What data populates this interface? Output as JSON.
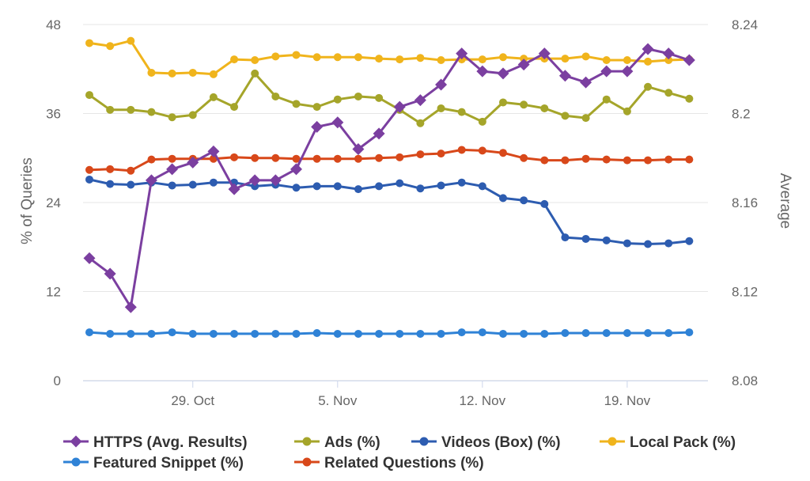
{
  "chart_data": {
    "type": "line",
    "title": "",
    "x_tick_labels": [
      "29. Oct",
      "5. Nov",
      "12. Nov",
      "19. Nov"
    ],
    "y_left": {
      "label": "% of Queries",
      "range": [
        0,
        48
      ],
      "ticks": [
        "0",
        "12",
        "24",
        "36",
        "48"
      ]
    },
    "y_right": {
      "label": "Average",
      "range": [
        8.08,
        8.24
      ],
      "ticks": [
        "8.08",
        "8.12",
        "8.16",
        "8.2",
        "8.24"
      ]
    },
    "grid": "horizontal",
    "legend_position": "bottom",
    "x_count": 30,
    "series": [
      {
        "name": "HTTPS (Avg. Results)",
        "axis": "right",
        "marker": "diamond",
        "color": "#7B3FA0",
        "values": [
          8.135,
          8.128,
          8.113,
          8.17,
          8.175,
          8.178,
          8.183,
          8.166,
          8.17,
          8.17,
          8.175,
          8.194,
          8.196,
          8.184,
          8.191,
          8.203,
          8.206,
          8.213,
          8.227,
          8.219,
          8.218,
          8.222,
          8.227,
          8.217,
          8.214,
          8.219,
          8.219,
          8.229,
          8.227,
          8.224
        ]
      },
      {
        "name": "Ads (%)",
        "axis": "left",
        "marker": "circle",
        "color": "#A5A52A",
        "values": [
          38.5,
          36.5,
          36.5,
          36.2,
          35.5,
          35.8,
          38.2,
          36.9,
          41.4,
          38.3,
          37.3,
          36.9,
          37.9,
          38.3,
          38.1,
          36.5,
          34.7,
          36.7,
          36.2,
          34.9,
          37.5,
          37.2,
          36.7,
          35.7,
          35.4,
          37.9,
          36.3,
          39.6,
          38.8,
          38.0
        ]
      },
      {
        "name": "Videos (Box) (%)",
        "axis": "left",
        "marker": "circle",
        "color": "#2D5CB0",
        "values": [
          27.1,
          26.5,
          26.4,
          26.7,
          26.3,
          26.4,
          26.7,
          26.7,
          26.2,
          26.4,
          26.0,
          26.2,
          26.2,
          25.8,
          26.2,
          26.6,
          25.9,
          26.3,
          26.7,
          26.2,
          24.6,
          24.3,
          23.8,
          19.3,
          19.1,
          18.9,
          18.5,
          18.4,
          18.5,
          18.8
        ]
      },
      {
        "name": "Local Pack (%)",
        "axis": "left",
        "marker": "circle",
        "color": "#F0B41C",
        "values": [
          45.5,
          45.1,
          45.8,
          41.5,
          41.4,
          41.5,
          41.3,
          43.3,
          43.2,
          43.7,
          43.9,
          43.6,
          43.6,
          43.6,
          43.4,
          43.3,
          43.5,
          43.2,
          43.3,
          43.3,
          43.6,
          43.4,
          43.4,
          43.4,
          43.7,
          43.2,
          43.2,
          43.0,
          43.2,
          43.3
        ]
      },
      {
        "name": "Featured Snippet (%)",
        "axis": "left",
        "marker": "circle",
        "color": "#2F82D6",
        "values": [
          6.5,
          6.3,
          6.3,
          6.3,
          6.5,
          6.3,
          6.3,
          6.3,
          6.3,
          6.3,
          6.3,
          6.4,
          6.3,
          6.3,
          6.3,
          6.3,
          6.3,
          6.3,
          6.5,
          6.5,
          6.3,
          6.3,
          6.3,
          6.4,
          6.4,
          6.4,
          6.4,
          6.4,
          6.4,
          6.5
        ]
      },
      {
        "name": "Related Questions (%)",
        "axis": "left",
        "marker": "circle",
        "color": "#D8481A",
        "values": [
          28.4,
          28.5,
          28.3,
          29.8,
          29.9,
          29.9,
          29.9,
          30.1,
          30.0,
          30.0,
          29.9,
          29.9,
          29.9,
          29.9,
          30.0,
          30.1,
          30.5,
          30.6,
          31.1,
          31.0,
          30.7,
          30.0,
          29.7,
          29.7,
          29.9,
          29.8,
          29.7,
          29.7,
          29.8,
          29.8
        ]
      }
    ]
  }
}
